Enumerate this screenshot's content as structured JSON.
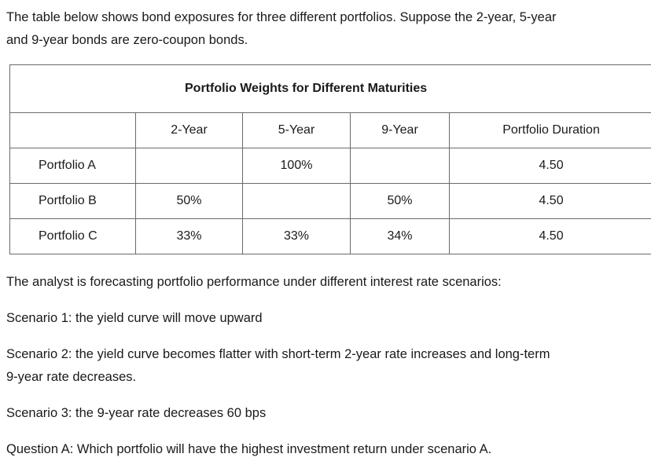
{
  "intro": {
    "line1": "The table below shows bond exposures for three different portfolios. Suppose the 2-year, 5-year",
    "line2": "and 9-year bonds are zero-coupon bonds."
  },
  "table": {
    "title": "Portfolio Weights for Different Maturities",
    "headers": [
      "",
      "2-Year",
      "5-Year",
      "9-Year",
      "Portfolio Duration"
    ],
    "rows": [
      {
        "label": "Portfolio A",
        "y2": "",
        "y5": "100%",
        "y9": "",
        "duration": "4.50"
      },
      {
        "label": "Portfolio B",
        "y2": "50%",
        "y5": "",
        "y9": "50%",
        "duration": "4.50"
      },
      {
        "label": "Portfolio C",
        "y2": "33%",
        "y5": "33%",
        "y9": "34%",
        "duration": "4.50"
      }
    ]
  },
  "analyst_line": "The analyst is forecasting portfolio performance under different interest rate scenarios:",
  "scenario1": "Scenario 1: the yield curve will move upward",
  "scenario2": {
    "line1": "Scenario 2: the yield curve becomes flatter with short-term 2-year rate increases and long-term",
    "line2": "9-year rate decreases."
  },
  "scenario3": "Scenario 3: the 9-year rate decreases 60 bps",
  "question_a": "Question A: Which portfolio will have the highest investment return under scenario A."
}
